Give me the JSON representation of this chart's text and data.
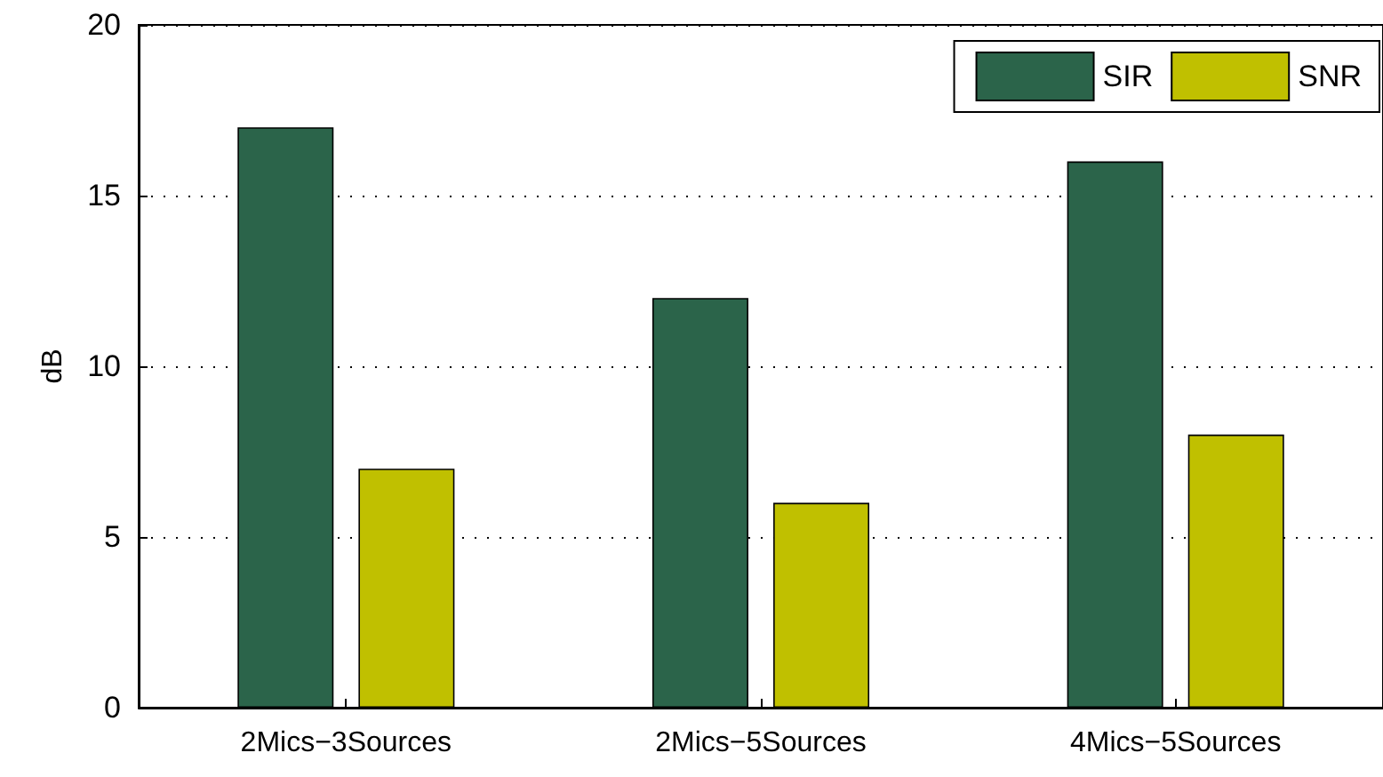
{
  "chart_data": {
    "type": "bar",
    "ylabel": "dB",
    "categories": [
      "2Mics−3Sources",
      "2Mics−5Sources",
      "4Mics−5Sources"
    ],
    "series": [
      {
        "name": "SIR",
        "color": "#2b644a",
        "values": [
          17,
          12,
          16
        ]
      },
      {
        "name": "SNR",
        "color": "#c0c000",
        "values": [
          7,
          6,
          8
        ]
      }
    ],
    "ylim": [
      0,
      20
    ],
    "yticks": [
      0,
      5,
      10,
      15,
      20
    ],
    "grid": "y",
    "legend": "top right"
  }
}
